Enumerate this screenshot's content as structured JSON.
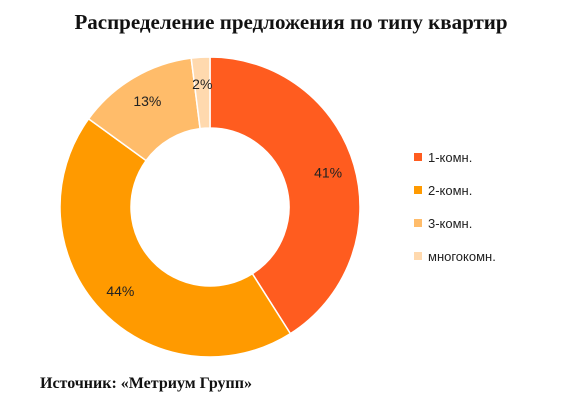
{
  "source_label": "Источник: «Метриум Групп»",
  "chart_data": {
    "type": "pie",
    "style": "donut",
    "title": "Распределение предложения по типу квартир",
    "categories": [
      "1-комн.",
      "2-комн.",
      "3-комн.",
      "многокомн."
    ],
    "values": [
      41,
      44,
      13,
      2
    ],
    "value_labels": [
      "41%",
      "44%",
      "13%",
      "2%"
    ],
    "colors": [
      "#FF5C1F",
      "#FF9A00",
      "#FFBC6A",
      "#FFD9AE"
    ],
    "legend_position": "right",
    "start_position": "top",
    "direction": "clockwise"
  }
}
